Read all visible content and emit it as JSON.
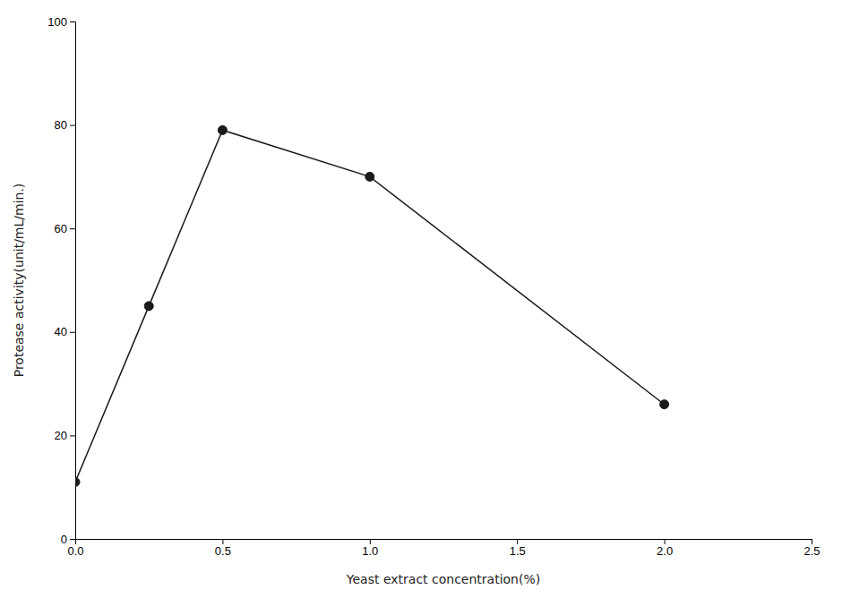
{
  "chart_data": {
    "type": "line",
    "x": [
      0.0,
      0.25,
      0.5,
      1.0,
      2.0
    ],
    "values": [
      11,
      45,
      79,
      70,
      26
    ],
    "xlim": [
      0,
      2.5
    ],
    "ylim": [
      0,
      100
    ],
    "xticks": [
      {
        "value": 0.0,
        "label": "0.0"
      },
      0.5,
      {
        "value": 1.0,
        "label": "1.0"
      },
      1.5,
      {
        "value": 2.0,
        "label": "2.0"
      },
      2.5
    ],
    "yticks": [
      0,
      20,
      40,
      60,
      80,
      100
    ],
    "xlabel": "Yeast extract concentration(%)",
    "ylabel": "Protease activity(unit/mL/min.)",
    "color": "#1a1a1a",
    "marker": "circle",
    "grid": false
  }
}
